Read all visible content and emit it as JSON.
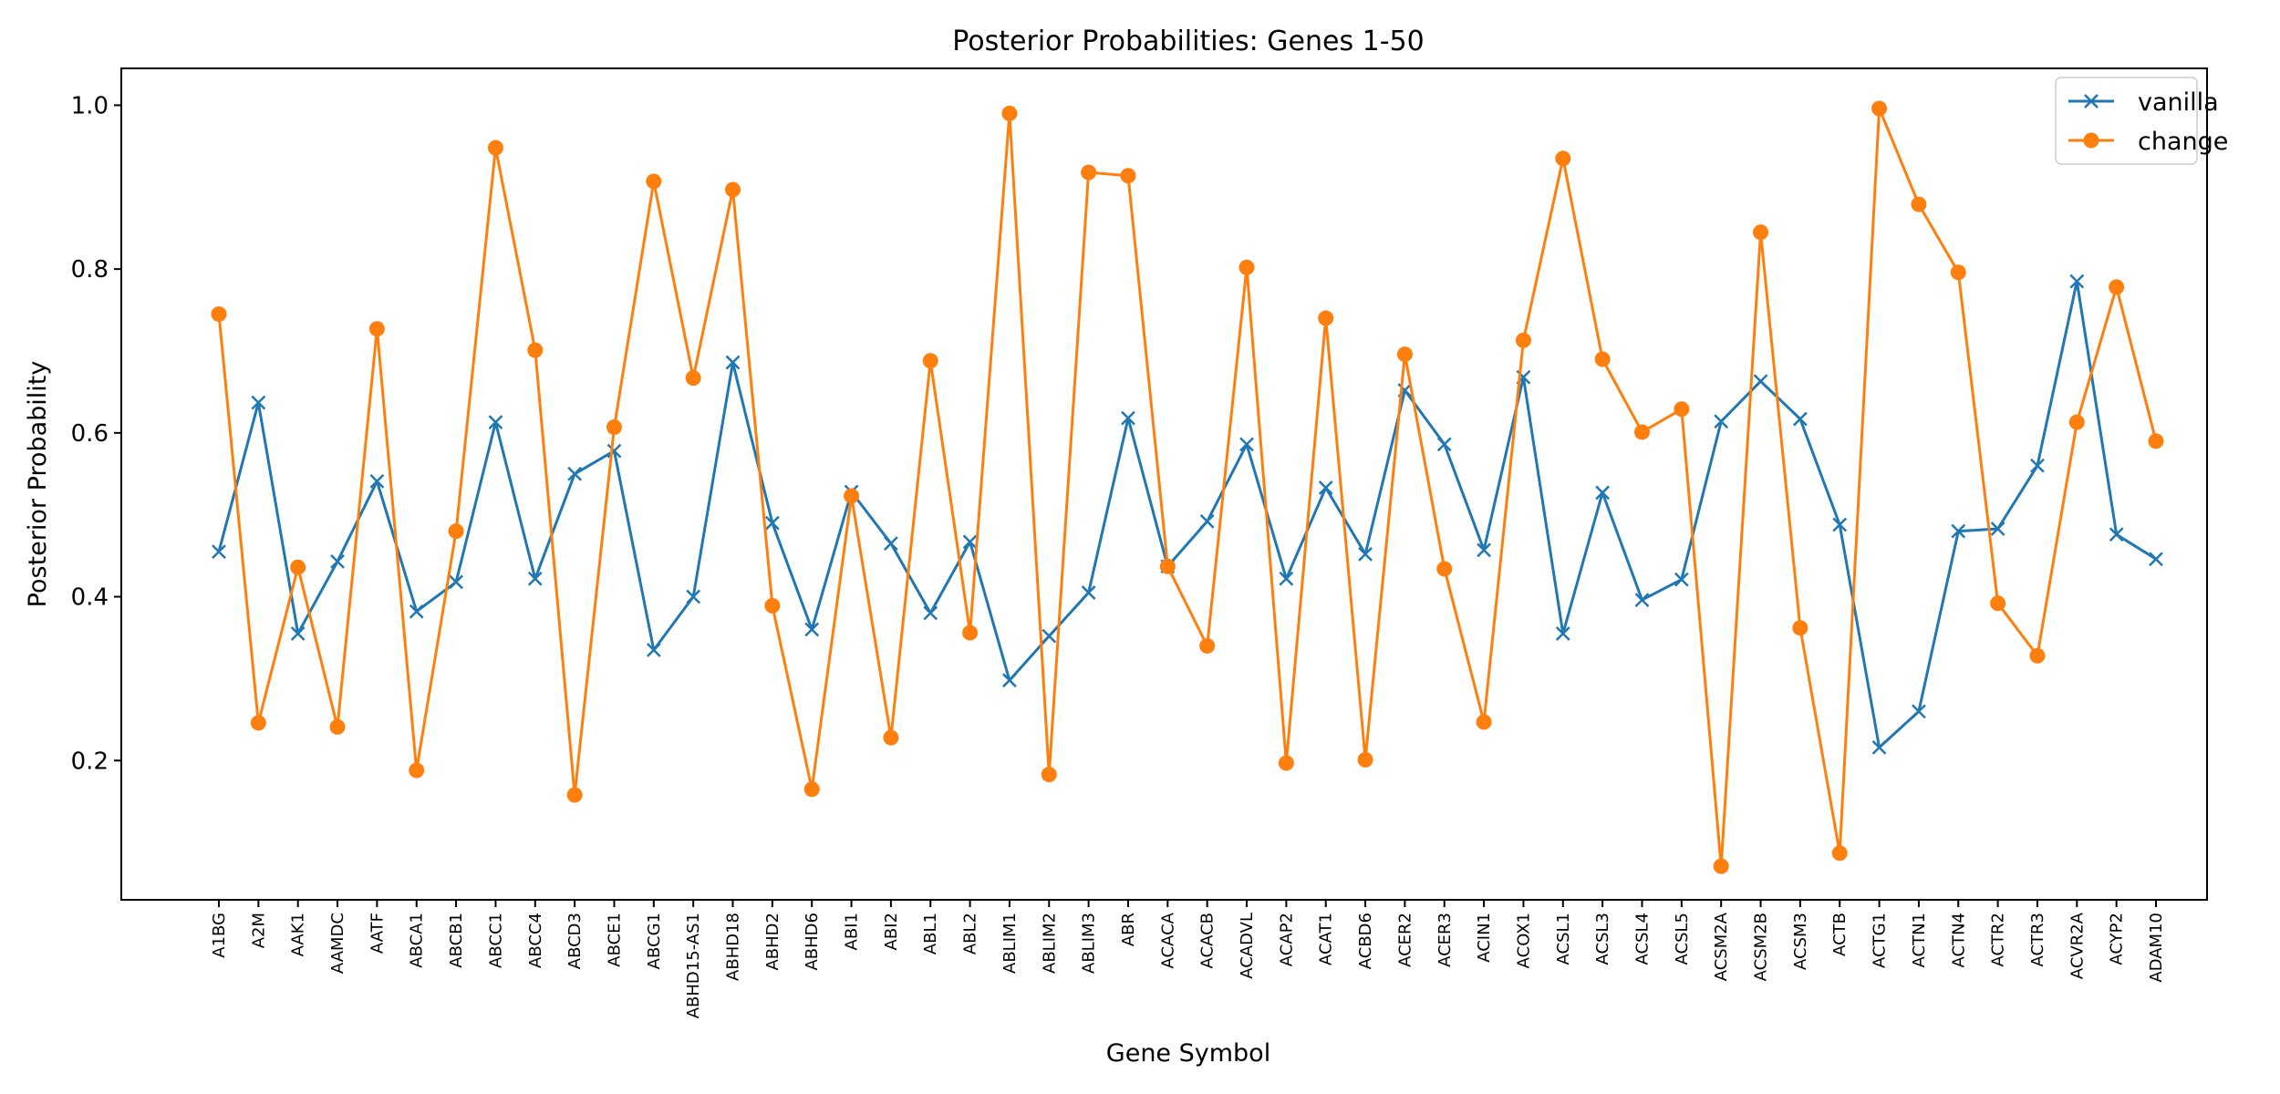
{
  "chart_data": {
    "type": "line",
    "title": "Posterior Probabilities: Genes 1-50",
    "xlabel": "Gene Symbol",
    "ylabel": "Posterior Probability",
    "ylim": [
      0.03,
      1.045
    ],
    "yticks": [
      "0.2",
      "0.4",
      "0.6",
      "0.8",
      "1.0"
    ],
    "grid": false,
    "legend_position": "top-right",
    "categories": [
      "A1BG",
      "A2M",
      "AAK1",
      "AAMDC",
      "AATF",
      "ABCA1",
      "ABCB1",
      "ABCC1",
      "ABCC4",
      "ABCD3",
      "ABCE1",
      "ABCG1",
      "ABHD15-AS1",
      "ABHD18",
      "ABHD2",
      "ABHD6",
      "ABI1",
      "ABI2",
      "ABL1",
      "ABL2",
      "ABLIM1",
      "ABLIM2",
      "ABLIM3",
      "ABR",
      "ACACA",
      "ACACB",
      "ACADVL",
      "ACAP2",
      "ACAT1",
      "ACBD6",
      "ACER2",
      "ACER3",
      "ACIN1",
      "ACOX1",
      "ACSL1",
      "ACSL3",
      "ACSL4",
      "ACSL5",
      "ACSM2A",
      "ACSM2B",
      "ACSM3",
      "ACTB",
      "ACTG1",
      "ACTN1",
      "ACTN4",
      "ACTR2",
      "ACTR3",
      "ACVR2A",
      "ACYP2",
      "ADAM10"
    ],
    "series": [
      {
        "name": "vanilla",
        "color": "#1f77b4",
        "marker": "x",
        "values": [
          0.455,
          0.637,
          0.355,
          0.443,
          0.541,
          0.382,
          0.418,
          0.613,
          0.422,
          0.55,
          0.578,
          0.335,
          0.4,
          0.686,
          0.49,
          0.36,
          0.528,
          0.465,
          0.38,
          0.467,
          0.298,
          0.352,
          0.405,
          0.618,
          0.437,
          0.492,
          0.586,
          0.422,
          0.533,
          0.452,
          0.652,
          0.586,
          0.457,
          0.668,
          0.355,
          0.527,
          0.396,
          0.421,
          0.614,
          0.663,
          0.617,
          0.488,
          0.216,
          0.26,
          0.48,
          0.483,
          0.56,
          0.785,
          0.476,
          0.446
        ]
      },
      {
        "name": "change",
        "color": "#ff7f0e",
        "marker": "o",
        "values": [
          0.745,
          0.246,
          0.436,
          0.241,
          0.727,
          0.188,
          0.48,
          0.948,
          0.701,
          0.158,
          0.607,
          0.907,
          0.667,
          0.897,
          0.389,
          0.165,
          0.523,
          0.228,
          0.688,
          0.356,
          0.99,
          0.183,
          0.918,
          0.914,
          0.437,
          0.34,
          0.802,
          0.197,
          0.74,
          0.201,
          0.696,
          0.434,
          0.247,
          0.713,
          0.935,
          0.69,
          0.601,
          0.629,
          0.071,
          0.845,
          0.362,
          0.087,
          0.996,
          0.879,
          0.796,
          0.392,
          0.328,
          0.613,
          0.778,
          0.59
        ]
      }
    ]
  }
}
